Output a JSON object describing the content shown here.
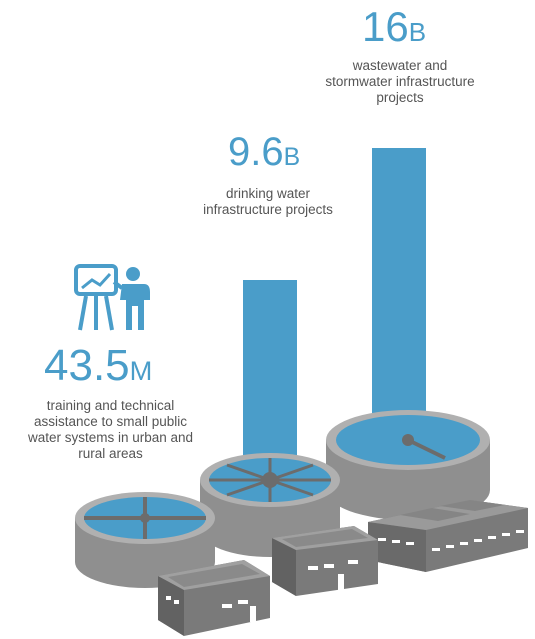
{
  "chart_data": {
    "type": "bar",
    "items": [
      {
        "value_number": "43.5",
        "value_unit": "M",
        "description": "training and technical assistance to small public water systems in urban and rural areas"
      },
      {
        "value_number": "9.6",
        "value_unit": "B",
        "description": "drinking water infrastructure projects"
      },
      {
        "value_number": "16",
        "value_unit": "B",
        "description": "wastewater and stormwater infrastructure projects"
      }
    ],
    "values_in_millions": [
      43.5,
      9600,
      16000
    ]
  },
  "colors": {
    "accent": "#4a9dc9",
    "text": "#555555",
    "tank": "#8f8f8f",
    "building": "#7a7a7a"
  },
  "icons": [
    "presenter-easel-icon"
  ]
}
